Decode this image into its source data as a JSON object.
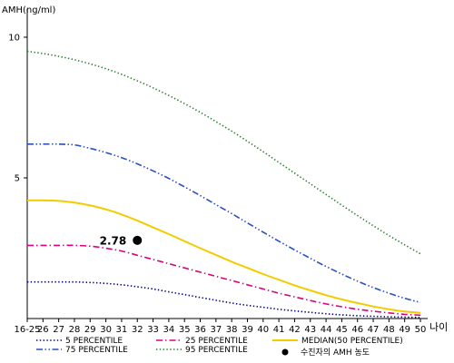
{
  "chart_data": {
    "type": "line",
    "ylabel": "AMH(ng/ml)",
    "xlabel": "나이",
    "ylim": [
      0,
      11
    ],
    "y_ticks": [
      5,
      10
    ],
    "categories": [
      "16-25",
      "26",
      "27",
      "28",
      "29",
      "30",
      "31",
      "32",
      "33",
      "34",
      "35",
      "36",
      "37",
      "38",
      "39",
      "40",
      "41",
      "42",
      "43",
      "44",
      "45",
      "46",
      "47",
      "48",
      "49",
      "50"
    ],
    "series": [
      {
        "name": "5 PERCENTILE",
        "color": "#000080",
        "dash": "dot",
        "values": [
          1.3,
          1.3,
          1.3,
          1.3,
          1.28,
          1.25,
          1.2,
          1.13,
          1.05,
          0.95,
          0.85,
          0.75,
          0.65,
          0.55,
          0.47,
          0.4,
          0.33,
          0.27,
          0.22,
          0.17,
          0.13,
          0.1,
          0.08,
          0.06,
          0.05,
          0.04
        ]
      },
      {
        "name": "25 PERCENTILE",
        "color": "#e0007f",
        "dash": "dashdot",
        "values": [
          2.6,
          2.6,
          2.6,
          2.6,
          2.57,
          2.5,
          2.4,
          2.25,
          2.1,
          1.95,
          1.8,
          1.65,
          1.5,
          1.35,
          1.2,
          1.05,
          0.9,
          0.77,
          0.64,
          0.52,
          0.42,
          0.33,
          0.26,
          0.2,
          0.15,
          0.12
        ]
      },
      {
        "name": "MEDIAN(50 PERCENTILE)",
        "color": "#f2cc00",
        "dash": "solid",
        "values": [
          4.2,
          4.2,
          4.18,
          4.12,
          4.02,
          3.88,
          3.7,
          3.48,
          3.24,
          3.0,
          2.75,
          2.5,
          2.26,
          2.02,
          1.8,
          1.58,
          1.38,
          1.18,
          1.0,
          0.83,
          0.68,
          0.55,
          0.43,
          0.33,
          0.25,
          0.2
        ]
      },
      {
        "name": "75 PERCENTILE",
        "color": "#2a4fc0",
        "dash": "dashdotdot",
        "values": [
          6.2,
          6.2,
          6.2,
          6.17,
          6.05,
          5.9,
          5.72,
          5.5,
          5.25,
          4.98,
          4.68,
          4.37,
          4.05,
          3.73,
          3.4,
          3.07,
          2.75,
          2.44,
          2.14,
          1.85,
          1.58,
          1.33,
          1.1,
          0.9,
          0.72,
          0.57
        ]
      },
      {
        "name": "95 PERCENTILE",
        "color": "#2e7d32",
        "dash": "dot",
        "values": [
          9.5,
          9.42,
          9.32,
          9.2,
          9.05,
          8.88,
          8.68,
          8.45,
          8.2,
          7.93,
          7.64,
          7.33,
          7.0,
          6.66,
          6.3,
          5.93,
          5.55,
          5.17,
          4.79,
          4.41,
          4.03,
          3.66,
          3.3,
          2.95,
          2.62,
          2.3
        ]
      }
    ],
    "marker": {
      "legend_label": "수진자의 AMH 농도",
      "x": "32",
      "y": 2.78,
      "label": "2.78",
      "color": "#000000"
    }
  }
}
